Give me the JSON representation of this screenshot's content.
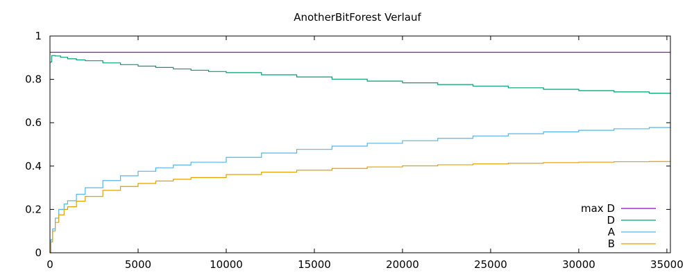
{
  "chart_data": {
    "type": "line",
    "title": "AnotherBitForest Verlauf",
    "xlabel": "",
    "ylabel": "",
    "xlim": [
      0,
      35200
    ],
    "ylim": [
      0,
      1
    ],
    "x_ticks": [
      "0",
      "5000",
      "10000",
      "15000",
      "20000",
      "25000",
      "30000",
      "35000"
    ],
    "y_ticks": [
      "0",
      "0.2",
      "0.4",
      "0.6",
      "0.8",
      "1"
    ],
    "grid": false,
    "legend_position": "bottom-right",
    "series": [
      {
        "name": "max D",
        "color": "#9400d3",
        "x": [
          0,
          35200
        ],
        "y": [
          0.925,
          0.925
        ]
      },
      {
        "name": "D",
        "color": "#009e73",
        "x": [
          0,
          100,
          300,
          600,
          1000,
          1500,
          2000,
          3000,
          4000,
          5000,
          6000,
          7000,
          8000,
          9000,
          10000,
          12000,
          14000,
          16000,
          18000,
          20000,
          22000,
          24000,
          26000,
          28000,
          30000,
          32000,
          34000,
          35200
        ],
        "y": [
          0.88,
          0.91,
          0.908,
          0.902,
          0.895,
          0.89,
          0.886,
          0.876,
          0.868,
          0.861,
          0.855,
          0.848,
          0.842,
          0.836,
          0.831,
          0.821,
          0.811,
          0.801,
          0.792,
          0.784,
          0.776,
          0.769,
          0.761,
          0.754,
          0.748,
          0.742,
          0.736,
          0.733
        ]
      },
      {
        "name": "A",
        "color": "#56b4e9",
        "x": [
          0,
          50,
          150,
          300,
          500,
          800,
          1000,
          1500,
          2000,
          3000,
          4000,
          5000,
          6000,
          7000,
          8000,
          10000,
          12000,
          14000,
          16000,
          18000,
          20000,
          22000,
          24000,
          26000,
          28000,
          30000,
          32000,
          34000,
          35200
        ],
        "y": [
          0.0,
          0.06,
          0.11,
          0.16,
          0.2,
          0.225,
          0.24,
          0.27,
          0.3,
          0.333,
          0.355,
          0.376,
          0.392,
          0.405,
          0.418,
          0.44,
          0.46,
          0.477,
          0.492,
          0.505,
          0.517,
          0.528,
          0.539,
          0.549,
          0.558,
          0.565,
          0.572,
          0.578,
          0.582
        ]
      },
      {
        "name": "B",
        "color": "#e69f00",
        "x": [
          0,
          50,
          150,
          300,
          500,
          800,
          1000,
          1500,
          2000,
          3000,
          4000,
          5000,
          6000,
          7000,
          8000,
          10000,
          12000,
          14000,
          16000,
          18000,
          20000,
          22000,
          24000,
          26000,
          28000,
          30000,
          32000,
          34000,
          35200
        ],
        "y": [
          0.0,
          0.05,
          0.1,
          0.14,
          0.175,
          0.2,
          0.212,
          0.238,
          0.26,
          0.288,
          0.306,
          0.32,
          0.331,
          0.339,
          0.347,
          0.361,
          0.372,
          0.381,
          0.389,
          0.396,
          0.401,
          0.406,
          0.41,
          0.413,
          0.416,
          0.418,
          0.42,
          0.421,
          0.422
        ]
      }
    ]
  }
}
